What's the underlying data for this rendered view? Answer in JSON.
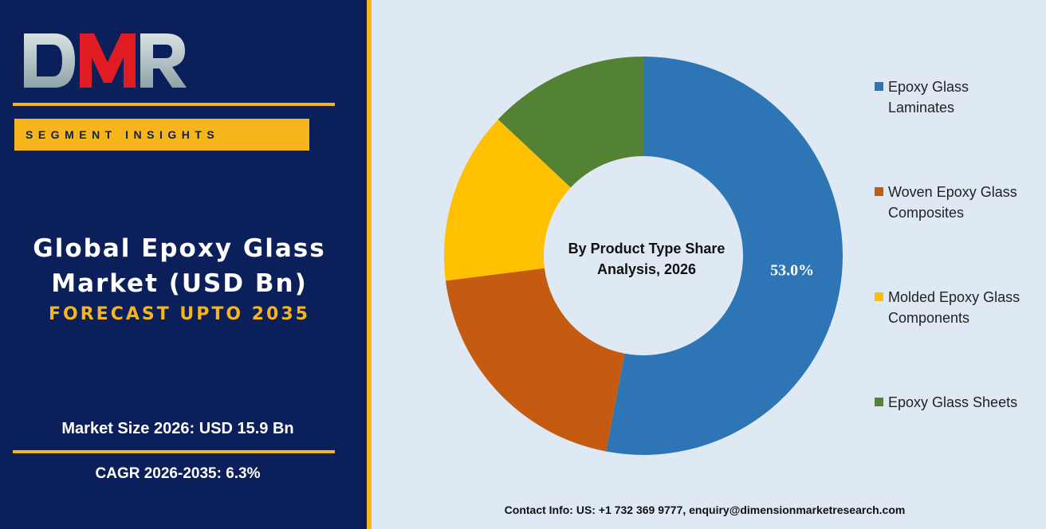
{
  "brand": {
    "logo_text": "DMR",
    "segment_label": "SEGMENT INSIGHTS"
  },
  "headline": {
    "line1": "Global Epoxy Glass",
    "line2": "Market (USD Bn)",
    "forecast": "FORECAST UPTO 2035"
  },
  "stats": {
    "market_size": "Market Size 2026: USD 15.9 Bn",
    "cagr": "CAGR 2026-2035: 6.3%"
  },
  "contact": "Contact Info: US: +1 732 369 9777, enquiry@dimensionmarketresearch.com",
  "colors": {
    "panel": "#0b1f5a",
    "accent": "#f5b51b",
    "background": "#dfe9f4"
  },
  "chart_data": {
    "type": "pie",
    "donut": true,
    "center_label_lines": [
      "By Product Type Share",
      "Analysis, 2026"
    ],
    "legend_position": "right",
    "series": [
      {
        "name": "Epoxy Glass Laminates",
        "value": 53.0,
        "label": "53.0%",
        "color": "#2e75b6"
      },
      {
        "name": "Woven Epoxy Glass Composites",
        "value": 20.0,
        "label": "",
        "color": "#c55a11"
      },
      {
        "name": "Molded Epoxy Glass Components",
        "value": 14.0,
        "label": "",
        "color": "#ffc000"
      },
      {
        "name": "Epoxy Glass Sheets",
        "value": 13.0,
        "label": "",
        "color": "#548235"
      }
    ],
    "legend": [
      [
        "Epoxy Glass",
        "Laminates"
      ],
      [
        "Woven Epoxy Glass",
        "Composites"
      ],
      [
        "Molded Epoxy Glass",
        "Components"
      ],
      [
        "Epoxy Glass Sheets"
      ]
    ]
  }
}
